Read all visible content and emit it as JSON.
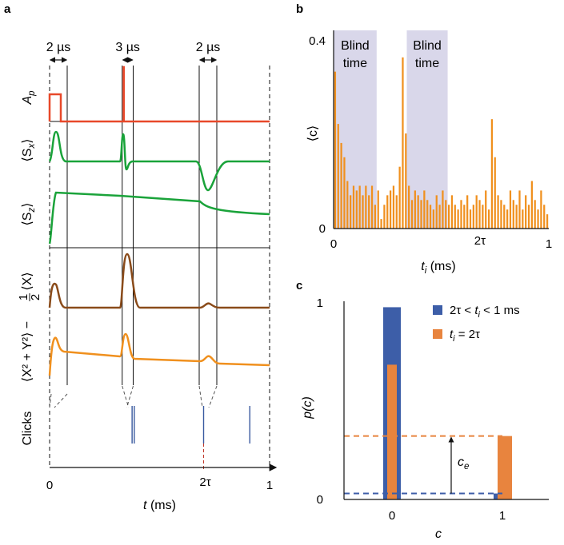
{
  "panels": {
    "a": {
      "label": "a"
    },
    "b": {
      "label": "b"
    },
    "c": {
      "label": "c"
    }
  },
  "chart_data": [
    {
      "id": "a",
      "type": "line",
      "xlabel_var": "t",
      "xlabel_unit": " (ms)",
      "xlim": [
        0,
        1
      ],
      "x_ticks": [
        "0",
        "1"
      ],
      "special_tick": "2τ",
      "durations": [
        "2 µs",
        "3 µs",
        "2 µs"
      ],
      "event_times": [
        0.0,
        0.08,
        0.33,
        0.38,
        0.68,
        0.76
      ],
      "two_tau": 0.7,
      "traces": [
        {
          "name": "A_p",
          "label_main": "A",
          "label_sub": "p",
          "color": "#e8492a"
        },
        {
          "name": "Sx",
          "label_main": "⟨S",
          "label_sub": "x",
          "label_tail": "⟩",
          "color": "#1aa33a"
        },
        {
          "name": "Sz",
          "label_main": "⟨S",
          "label_sub": "z",
          "label_tail": "⟩",
          "color": "#1aa33a"
        },
        {
          "name": "X",
          "label_main": "⟨X⟩",
          "color": "#8a4b1a"
        },
        {
          "name": "X2Y2",
          "label_main": "⟨X² + Y²⟩ − ",
          "label_frac_num": "1",
          "label_frac_den": "2",
          "color": "#f0901e"
        }
      ],
      "clicks": {
        "label": "Clicks",
        "color": "#3a5aa0",
        "times": [
          0.375,
          0.385,
          0.7,
          0.91
        ]
      }
    },
    {
      "id": "b",
      "type": "bar",
      "xlabel_var": "t",
      "xlabel_sub": "i",
      "xlabel_unit": " (ms)",
      "ylabel": "⟨c⟩",
      "xlim": [
        0,
        1
      ],
      "ylim": [
        0,
        0.4
      ],
      "x_ticks": [
        "0",
        "2τ",
        "1"
      ],
      "y_ticks": [
        "0",
        "0.4"
      ],
      "bar_color": "#f0901e",
      "blind_regions": [
        {
          "from": 0.0,
          "to": 0.2,
          "label_line1": "Blind",
          "label_line2": "time"
        },
        {
          "from": 0.34,
          "to": 0.53,
          "label_line1": "Blind",
          "label_line2": "time"
        }
      ],
      "values": [
        0.33,
        0.22,
        0.18,
        0.15,
        0.1,
        0.07,
        0.09,
        0.08,
        0.09,
        0.07,
        0.09,
        0.07,
        0.09,
        0.05,
        0.08,
        0.02,
        0.05,
        0.07,
        0.08,
        0.09,
        0.07,
        0.13,
        0.36,
        0.2,
        0.09,
        0.06,
        0.08,
        0.07,
        0.06,
        0.08,
        0.06,
        0.05,
        0.04,
        0.07,
        0.05,
        0.08,
        0.06,
        0.05,
        0.07,
        0.05,
        0.04,
        0.06,
        0.05,
        0.07,
        0.04,
        0.05,
        0.07,
        0.06,
        0.05,
        0.08,
        0.04,
        0.23,
        0.15,
        0.07,
        0.06,
        0.05,
        0.04,
        0.08,
        0.06,
        0.05,
        0.08,
        0.04,
        0.07,
        0.05,
        0.1,
        0.06,
        0.04,
        0.08,
        0.05,
        0.03
      ]
    },
    {
      "id": "c",
      "type": "bar",
      "xlabel": "c",
      "ylabel": "p(c)",
      "x_ticks": [
        "0",
        "1"
      ],
      "y_ticks": [
        "0",
        "1"
      ],
      "ylim": [
        0,
        1
      ],
      "series": [
        {
          "name_parts": [
            "2τ < ",
            "t",
            "i",
            " < 1 ms"
          ],
          "color": "#3d5ea8",
          "values": [
            0.97,
            0.03
          ]
        },
        {
          "name_parts": [
            "",
            "t",
            "i",
            " = 2τ"
          ],
          "color": "#e8843e",
          "values": [
            0.68,
            0.32
          ]
        }
      ],
      "annotation": {
        "main": "c",
        "sub": "e"
      }
    }
  ]
}
